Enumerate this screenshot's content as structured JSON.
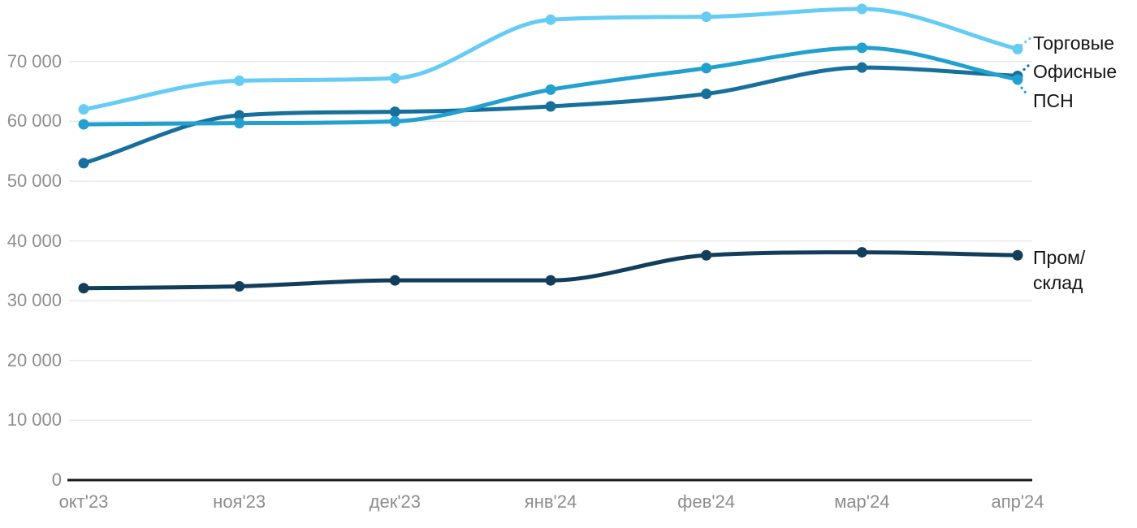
{
  "chart_data": {
    "type": "line",
    "title": "",
    "xlabel": "",
    "ylabel": "",
    "grid": "horizontal",
    "legend_position": "right-of-line-ends",
    "ylim": [
      0,
      80000
    ],
    "categories": [
      "окт'23",
      "ноя'23",
      "дек'23",
      "янв'24",
      "фев'24",
      "мар'24",
      "апр'24"
    ],
    "y_ticks": [
      {
        "value": 70000,
        "label": "70 000"
      },
      {
        "value": 60000,
        "label": "60 000"
      },
      {
        "value": 50000,
        "label": "50 000"
      },
      {
        "value": 40000,
        "label": "40 000"
      },
      {
        "value": 30000,
        "label": "30 000"
      },
      {
        "value": 20000,
        "label": "20 000"
      },
      {
        "value": 10000,
        "label": "10 000"
      },
      {
        "value": 0,
        "label": "0"
      }
    ],
    "series": [
      {
        "name": "Торговые",
        "color": "#66CCF3",
        "values": [
          62000,
          66800,
          67200,
          77000,
          77500,
          78800,
          72100
        ]
      },
      {
        "name": "Офисные",
        "color": "#176F9B",
        "values": [
          53000,
          61000,
          61600,
          62500,
          64600,
          69000,
          67600
        ]
      },
      {
        "name": "ПСН",
        "color": "#22A0CF",
        "values": [
          59500,
          59700,
          60000,
          65300,
          68900,
          72300,
          67000
        ]
      },
      {
        "name": "Пром/склад",
        "color": "#123E5C",
        "values": [
          32100,
          32400,
          33400,
          33400,
          37600,
          38100,
          37600
        ]
      }
    ]
  },
  "legend": {
    "prom_lines": [
      "Пром/",
      "склад"
    ]
  },
  "style": {
    "grid_color": "#e8e8e8",
    "axis_color": "#1a1a1a",
    "tick_label_color": "#8d8d8d"
  }
}
